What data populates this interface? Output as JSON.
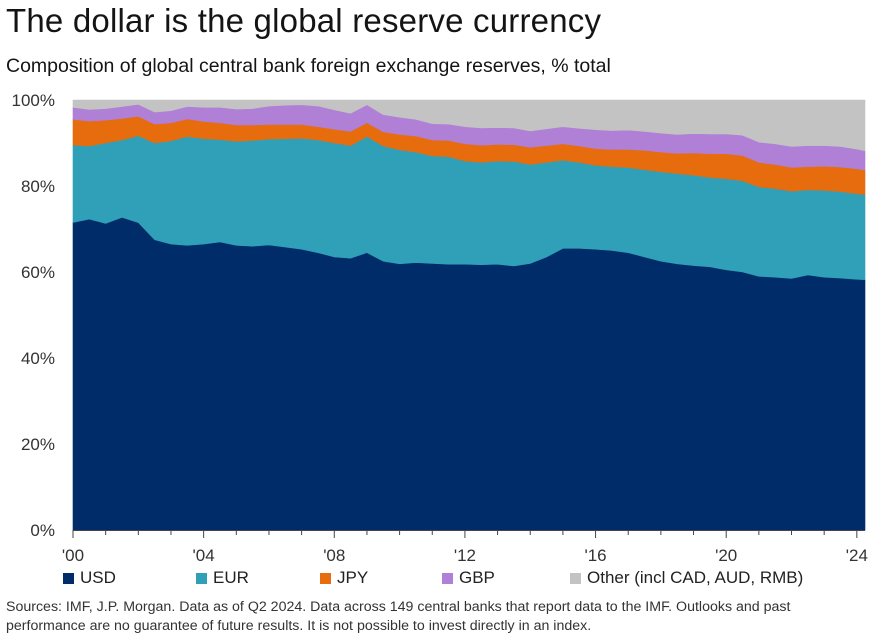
{
  "header": {
    "title": "The dollar is the global reserve currency",
    "subtitle": "Composition of global central bank foreign exchange reserves, % total"
  },
  "footer": {
    "source": "Sources: IMF, J.P. Morgan. Data as of Q2 2024. Data across 149 central banks that report data to the IMF. Outlooks and past performance are no guarantee of future results. It is not possible to invest directly in an index."
  },
  "chart_data": {
    "type": "area",
    "stacked": true,
    "title": "The dollar is the global reserve currency",
    "subtitle": "Composition of global central bank foreign exchange reserves, % total",
    "xlabel": "",
    "ylabel": "",
    "x_range": [
      2000.0,
      2024.25
    ],
    "ylim": [
      0,
      100
    ],
    "y_ticks": [
      0,
      20,
      40,
      60,
      80,
      100
    ],
    "y_tick_labels": [
      "0%",
      "20%",
      "40%",
      "60%",
      "80%",
      "100%"
    ],
    "x_ticks": [
      2000,
      2004,
      2008,
      2012,
      2016,
      2020,
      2024
    ],
    "x_tick_labels": [
      "'00",
      "'04",
      "'08",
      "'12",
      "'16",
      "'20",
      "'24"
    ],
    "grid": false,
    "legend_position": "bottom",
    "x": [
      2000.0,
      2000.5,
      2001.0,
      2001.5,
      2002.0,
      2002.5,
      2003.0,
      2003.5,
      2004.0,
      2004.5,
      2005.0,
      2005.5,
      2006.0,
      2006.5,
      2007.0,
      2007.5,
      2008.0,
      2008.5,
      2009.0,
      2009.5,
      2010.0,
      2010.5,
      2011.0,
      2011.5,
      2012.0,
      2012.5,
      2013.0,
      2013.5,
      2014.0,
      2014.5,
      2015.0,
      2015.5,
      2016.0,
      2016.5,
      2017.0,
      2017.5,
      2018.0,
      2018.5,
      2019.0,
      2019.5,
      2020.0,
      2020.5,
      2021.0,
      2021.5,
      2022.0,
      2022.5,
      2023.0,
      2023.5,
      2024.0,
      2024.25
    ],
    "series": [
      {
        "name": "USD",
        "color": "#002d6a",
        "values": [
          71.5,
          72.3,
          71.3,
          72.7,
          71.5,
          67.5,
          66.5,
          66.2,
          66.5,
          67.0,
          66.2,
          66.0,
          66.3,
          65.8,
          65.3,
          64.5,
          63.5,
          63.2,
          64.5,
          62.5,
          61.9,
          62.2,
          62.0,
          61.8,
          61.8,
          61.7,
          61.8,
          61.4,
          62.0,
          63.5,
          65.5,
          65.5,
          65.3,
          65.0,
          64.5,
          63.5,
          62.5,
          61.9,
          61.5,
          61.2,
          60.5,
          60.0,
          59.0,
          58.8,
          58.5,
          59.3,
          58.8,
          58.6,
          58.3,
          58.2
        ]
      },
      {
        "name": "EUR",
        "color": "#2fa0b8",
        "values": [
          18.0,
          17.0,
          18.7,
          18.0,
          20.2,
          22.5,
          24.0,
          25.3,
          24.5,
          23.8,
          24.2,
          24.6,
          24.6,
          25.2,
          25.8,
          26.2,
          26.5,
          26.2,
          27.0,
          26.8,
          26.5,
          25.7,
          25.0,
          25.0,
          24.0,
          23.8,
          24.0,
          24.3,
          23.0,
          22.0,
          20.5,
          20.0,
          19.5,
          19.5,
          19.8,
          20.3,
          20.8,
          21.0,
          21.0,
          20.8,
          21.2,
          21.2,
          20.8,
          20.6,
          20.3,
          19.8,
          20.2,
          20.1,
          19.9,
          19.8
        ]
      },
      {
        "name": "JPY",
        "color": "#e66c0e",
        "values": [
          6.0,
          5.8,
          5.3,
          5.0,
          4.5,
          4.4,
          4.2,
          4.1,
          4.0,
          3.9,
          3.8,
          3.6,
          3.4,
          3.3,
          3.2,
          3.1,
          3.2,
          3.3,
          3.2,
          3.3,
          3.6,
          3.7,
          3.7,
          3.8,
          4.0,
          4.0,
          3.9,
          3.9,
          4.0,
          3.9,
          3.8,
          3.8,
          3.9,
          4.0,
          4.2,
          4.5,
          4.6,
          4.7,
          5.2,
          5.5,
          5.8,
          5.9,
          5.7,
          5.6,
          5.5,
          5.4,
          5.6,
          5.7,
          5.8,
          5.7
        ]
      },
      {
        "name": "GBP",
        "color": "#b07fd6",
        "values": [
          2.8,
          2.7,
          2.7,
          2.8,
          2.8,
          2.8,
          2.8,
          2.9,
          3.3,
          3.6,
          3.7,
          3.8,
          4.3,
          4.5,
          4.6,
          4.8,
          4.5,
          4.2,
          4.2,
          4.0,
          4.0,
          3.9,
          3.8,
          3.8,
          4.0,
          4.0,
          3.9,
          3.9,
          3.8,
          3.9,
          4.0,
          4.1,
          4.4,
          4.4,
          4.5,
          4.4,
          4.4,
          4.4,
          4.5,
          4.6,
          4.6,
          4.7,
          4.7,
          4.8,
          4.9,
          4.9,
          4.8,
          4.8,
          4.6,
          4.5
        ]
      },
      {
        "name": "Other (incl CAD, AUD, RMB)",
        "color": "#c3c3c3",
        "values": [
          1.7,
          2.2,
          2.0,
          1.5,
          1.0,
          2.8,
          2.5,
          1.5,
          1.7,
          1.7,
          2.1,
          2.0,
          1.4,
          1.2,
          1.1,
          1.4,
          2.3,
          3.1,
          1.1,
          3.4,
          4.0,
          4.5,
          5.5,
          5.6,
          6.2,
          6.5,
          6.4,
          6.5,
          7.2,
          6.7,
          6.2,
          6.6,
          6.9,
          7.1,
          7.0,
          7.3,
          7.7,
          8.0,
          7.8,
          7.9,
          7.9,
          8.2,
          9.8,
          10.2,
          10.8,
          10.6,
          10.6,
          10.8,
          11.4,
          11.8
        ]
      }
    ]
  }
}
